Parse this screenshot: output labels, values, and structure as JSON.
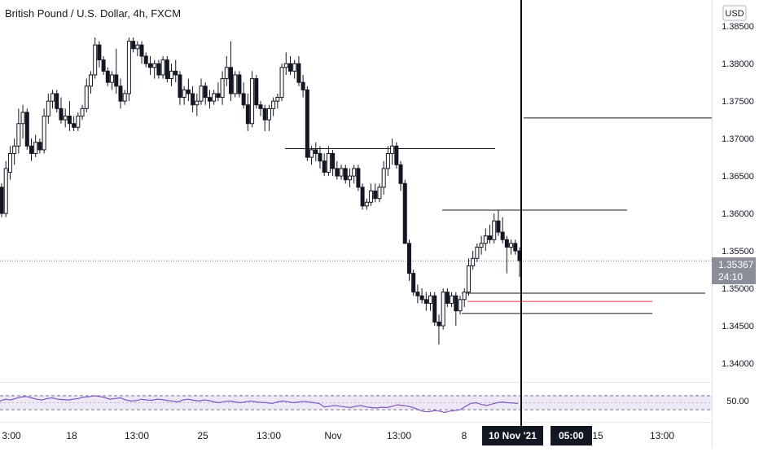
{
  "header": {
    "title": "British Pound / U.S. Dollar, 4h, FXCM"
  },
  "price_axis": {
    "currency": "USD",
    "ticks": [
      "1.38500",
      "1.38000",
      "1.37500",
      "1.37000",
      "1.36500",
      "1.36000",
      "1.35500",
      "1.35000",
      "1.34500",
      "1.34000"
    ],
    "current_price": "1.35367",
    "countdown": "24:10"
  },
  "rsi_axis": {
    "ticks": [
      "50.00"
    ]
  },
  "time_axis": {
    "ticks": [
      "3:00",
      "18",
      "13:00",
      "25",
      "13:00",
      "Nov",
      "13:00",
      "8",
      "05:00",
      "15",
      "13:00"
    ],
    "cursor_date": "10 Nov '21",
    "cursor_time": "05:00"
  },
  "colors": {
    "candle": "#131722",
    "rsi_line": "#7e57c2",
    "rsi_band": "#ede7f6",
    "red_level": "#f23645",
    "cursor": "#000000",
    "grid_line": "#e0e3eb"
  },
  "chart_data": {
    "type": "candlestick",
    "symbol": "British Pound / U.S. Dollar",
    "interval": "4h",
    "source": "FXCM",
    "ylim": [
      1.3375,
      1.3885
    ],
    "last_close": 1.35367,
    "ohlc": [
      [
        1.3635,
        1.364,
        1.3595,
        1.36
      ],
      [
        1.36,
        1.367,
        1.3595,
        1.366
      ],
      [
        1.3655,
        1.369,
        1.3645,
        1.368
      ],
      [
        1.368,
        1.37,
        1.3665,
        1.369
      ],
      [
        1.369,
        1.374,
        1.368,
        1.372
      ],
      [
        1.372,
        1.3745,
        1.37,
        1.3735
      ],
      [
        1.3735,
        1.374,
        1.3685,
        1.369
      ],
      [
        1.369,
        1.37,
        1.367,
        1.368
      ],
      [
        1.368,
        1.3705,
        1.3675,
        1.3695
      ],
      [
        1.3695,
        1.37,
        1.368,
        1.3685
      ],
      [
        1.3685,
        1.374,
        1.368,
        1.373
      ],
      [
        1.373,
        1.376,
        1.372,
        1.375
      ],
      [
        1.375,
        1.3765,
        1.374,
        1.376
      ],
      [
        1.376,
        1.3765,
        1.3735,
        1.374
      ],
      [
        1.374,
        1.3755,
        1.372,
        1.3725
      ],
      [
        1.3725,
        1.374,
        1.3715,
        1.373
      ],
      [
        1.373,
        1.375,
        1.371,
        1.372
      ],
      [
        1.372,
        1.373,
        1.371,
        1.3715
      ],
      [
        1.3715,
        1.3735,
        1.371,
        1.373
      ],
      [
        1.373,
        1.3745,
        1.3725,
        1.374
      ],
      [
        1.374,
        1.378,
        1.3735,
        1.377
      ],
      [
        1.377,
        1.379,
        1.376,
        1.3785
      ],
      [
        1.3785,
        1.3835,
        1.378,
        1.3825
      ],
      [
        1.3825,
        1.383,
        1.3795,
        1.3805
      ],
      [
        1.3805,
        1.381,
        1.3785,
        1.379
      ],
      [
        1.379,
        1.3795,
        1.377,
        1.3775
      ],
      [
        1.3775,
        1.379,
        1.3765,
        1.3785
      ],
      [
        1.3785,
        1.382,
        1.376,
        1.377
      ],
      [
        1.377,
        1.378,
        1.374,
        1.375
      ],
      [
        1.375,
        1.3765,
        1.3745,
        1.376
      ],
      [
        1.376,
        1.3835,
        1.375,
        1.383
      ],
      [
        1.383,
        1.3835,
        1.3815,
        1.382
      ],
      [
        1.382,
        1.383,
        1.381,
        1.3825
      ],
      [
        1.3825,
        1.383,
        1.38,
        1.381
      ],
      [
        1.381,
        1.3815,
        1.3795,
        1.38
      ],
      [
        1.38,
        1.381,
        1.3785,
        1.3795
      ],
      [
        1.3795,
        1.3805,
        1.378,
        1.38
      ],
      [
        1.38,
        1.3805,
        1.378,
        1.3785
      ],
      [
        1.3785,
        1.381,
        1.378,
        1.3805
      ],
      [
        1.3805,
        1.381,
        1.3775,
        1.378
      ],
      [
        1.378,
        1.38,
        1.377,
        1.379
      ],
      [
        1.379,
        1.3805,
        1.3775,
        1.3785
      ],
      [
        1.3785,
        1.379,
        1.3745,
        1.3755
      ],
      [
        1.3755,
        1.377,
        1.3745,
        1.3765
      ],
      [
        1.3765,
        1.378,
        1.375,
        1.376
      ],
      [
        1.376,
        1.377,
        1.3735,
        1.3745
      ],
      [
        1.3745,
        1.376,
        1.373,
        1.375
      ],
      [
        1.375,
        1.378,
        1.3745,
        1.377
      ],
      [
        1.377,
        1.3775,
        1.3745,
        1.3755
      ],
      [
        1.3755,
        1.3765,
        1.374,
        1.375
      ],
      [
        1.375,
        1.3765,
        1.3745,
        1.376
      ],
      [
        1.376,
        1.3775,
        1.375,
        1.3755
      ],
      [
        1.3755,
        1.379,
        1.3745,
        1.378
      ],
      [
        1.378,
        1.381,
        1.377,
        1.3795
      ],
      [
        1.3795,
        1.383,
        1.375,
        1.376
      ],
      [
        1.376,
        1.379,
        1.3755,
        1.3785
      ],
      [
        1.3785,
        1.379,
        1.3755,
        1.376
      ],
      [
        1.376,
        1.3775,
        1.374,
        1.3745
      ],
      [
        1.3745,
        1.376,
        1.371,
        1.372
      ],
      [
        1.372,
        1.379,
        1.3715,
        1.378
      ],
      [
        1.378,
        1.3785,
        1.374,
        1.3745
      ],
      [
        1.3745,
        1.375,
        1.373,
        1.374
      ],
      [
        1.374,
        1.3745,
        1.371,
        1.3725
      ],
      [
        1.3725,
        1.3745,
        1.371,
        1.374
      ],
      [
        1.374,
        1.3755,
        1.373,
        1.375
      ],
      [
        1.375,
        1.376,
        1.374,
        1.3755
      ],
      [
        1.3755,
        1.38,
        1.375,
        1.3795
      ],
      [
        1.3795,
        1.3815,
        1.3785,
        1.38
      ],
      [
        1.38,
        1.381,
        1.3785,
        1.379
      ],
      [
        1.379,
        1.3805,
        1.378,
        1.38
      ],
      [
        1.38,
        1.381,
        1.377,
        1.3775
      ],
      [
        1.3775,
        1.3785,
        1.3755,
        1.3765
      ],
      [
        1.3765,
        1.377,
        1.367,
        1.3675
      ],
      [
        1.3675,
        1.369,
        1.3665,
        1.3685
      ],
      [
        1.3685,
        1.3695,
        1.367,
        1.368
      ],
      [
        1.368,
        1.369,
        1.366,
        1.367
      ],
      [
        1.367,
        1.368,
        1.365,
        1.3655
      ],
      [
        1.3655,
        1.369,
        1.365,
        1.368
      ],
      [
        1.368,
        1.3685,
        1.365,
        1.366
      ],
      [
        1.366,
        1.367,
        1.3645,
        1.365
      ],
      [
        1.365,
        1.3665,
        1.3645,
        1.366
      ],
      [
        1.366,
        1.3665,
        1.364,
        1.3645
      ],
      [
        1.3645,
        1.366,
        1.3635,
        1.365
      ],
      [
        1.365,
        1.3665,
        1.364,
        1.366
      ],
      [
        1.366,
        1.3665,
        1.363,
        1.3635
      ],
      [
        1.3635,
        1.364,
        1.3605,
        1.361
      ],
      [
        1.361,
        1.362,
        1.3605,
        1.3615
      ],
      [
        1.3615,
        1.364,
        1.361,
        1.363
      ],
      [
        1.363,
        1.364,
        1.3615,
        1.362
      ],
      [
        1.362,
        1.364,
        1.3615,
        1.3635
      ],
      [
        1.3635,
        1.367,
        1.3625,
        1.366
      ],
      [
        1.366,
        1.369,
        1.365,
        1.368
      ],
      [
        1.368,
        1.37,
        1.3665,
        1.369
      ],
      [
        1.369,
        1.3695,
        1.366,
        1.3665
      ],
      [
        1.3665,
        1.367,
        1.363,
        1.364
      ],
      [
        1.364,
        1.3645,
        1.356,
        1.356
      ],
      [
        1.356,
        1.3565,
        1.351,
        1.352
      ],
      [
        1.352,
        1.3525,
        1.349,
        1.3495
      ],
      [
        1.3495,
        1.3505,
        1.348,
        1.349
      ],
      [
        1.349,
        1.35,
        1.348,
        1.3485
      ],
      [
        1.3485,
        1.3495,
        1.347,
        1.348
      ],
      [
        1.348,
        1.3495,
        1.347,
        1.349
      ],
      [
        1.349,
        1.3495,
        1.345,
        1.3455
      ],
      [
        1.3455,
        1.3465,
        1.3425,
        1.345
      ],
      [
        1.345,
        1.35,
        1.3445,
        1.3495
      ],
      [
        1.3495,
        1.35,
        1.3475,
        1.348
      ],
      [
        1.348,
        1.3495,
        1.3475,
        1.349
      ],
      [
        1.349,
        1.3495,
        1.345,
        1.347
      ],
      [
        1.347,
        1.349,
        1.3465,
        1.3485
      ],
      [
        1.3485,
        1.35,
        1.3475,
        1.3495
      ],
      [
        1.3495,
        1.354,
        1.349,
        1.353
      ],
      [
        1.353,
        1.355,
        1.3525,
        1.354
      ],
      [
        1.354,
        1.356,
        1.3535,
        1.3555
      ],
      [
        1.3555,
        1.357,
        1.3545,
        1.356
      ],
      [
        1.356,
        1.358,
        1.355,
        1.357
      ],
      [
        1.357,
        1.3585,
        1.356,
        1.3565
      ],
      [
        1.3565,
        1.36,
        1.356,
        1.359
      ],
      [
        1.359,
        1.3605,
        1.357,
        1.3575
      ],
      [
        1.3575,
        1.3595,
        1.356,
        1.3565
      ],
      [
        1.3565,
        1.357,
        1.352,
        1.3555
      ],
      [
        1.3555,
        1.3565,
        1.3545,
        1.356
      ],
      [
        1.356,
        1.3565,
        1.3545,
        1.355
      ],
      [
        1.355,
        1.3555,
        1.3515,
        1.3537
      ]
    ],
    "horizontal_lines": [
      {
        "price": 1.37275,
        "style": "solid",
        "color": "#131722"
      },
      {
        "price": 1.36865,
        "style": "solid",
        "color": "#131722"
      },
      {
        "price": 1.36045,
        "style": "solid",
        "color": "#131722"
      },
      {
        "price": 1.34935,
        "style": "solid",
        "color": "#131722"
      },
      {
        "price": 1.34825,
        "style": "solid",
        "color": "#f23645"
      },
      {
        "price": 1.34665,
        "style": "solid",
        "color": "#131722"
      },
      {
        "price": 1.35367,
        "style": "dotted",
        "color": "#787b86"
      }
    ],
    "rsi": {
      "ylim": [
        0,
        100
      ],
      "upper_band": 70,
      "lower_band": 30,
      "midline": 50,
      "values": [
        55,
        60,
        58,
        62,
        66,
        68,
        64,
        60,
        58,
        62,
        64,
        60,
        59,
        58,
        60,
        62,
        66,
        67,
        70,
        68,
        65,
        60,
        62,
        64,
        58,
        55,
        56,
        60,
        58,
        57,
        60,
        59,
        56,
        55,
        52,
        58,
        60,
        57,
        55,
        58,
        56,
        52,
        50,
        54,
        55,
        52,
        50,
        53,
        55,
        52,
        51,
        50,
        48,
        52,
        55,
        53,
        50,
        52,
        54,
        52,
        50,
        48,
        38,
        40,
        42,
        40,
        38,
        36,
        40,
        42,
        38,
        36,
        35,
        37,
        36,
        40,
        44,
        42,
        40,
        36,
        30,
        25,
        24,
        28,
        26,
        22,
        26,
        28,
        30,
        40,
        48,
        50,
        45,
        42,
        46,
        50,
        52,
        50,
        49,
        48
      ]
    },
    "time_ticks": [
      "3:00",
      "18",
      "13:00",
      "25",
      "13:00",
      "Nov",
      "13:00",
      "8",
      "05:00",
      "15",
      "13:00"
    ]
  }
}
